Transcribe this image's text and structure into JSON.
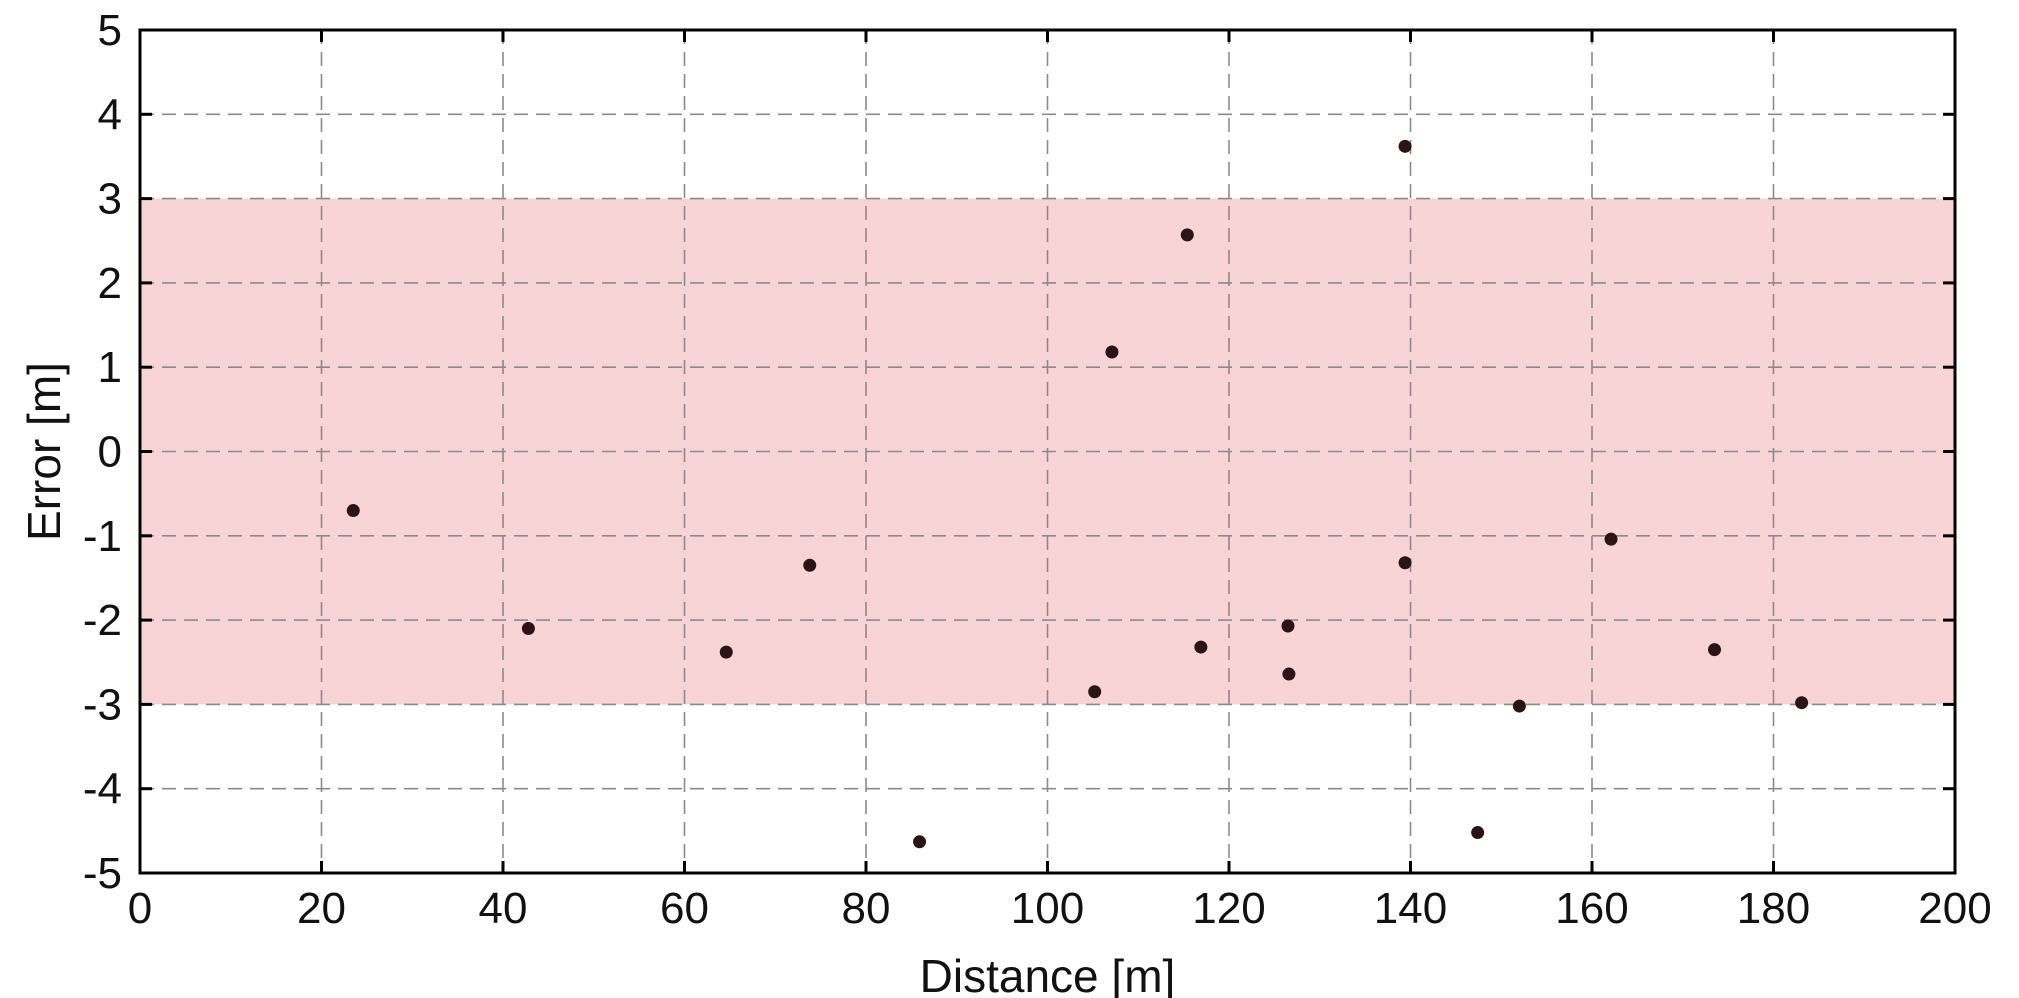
{
  "chart_data": {
    "type": "scatter",
    "xlabel": "Distance [m]",
    "ylabel": "Error [m]",
    "xlim": [
      0,
      200
    ],
    "ylim": [
      -5,
      5
    ],
    "xticks": [
      "0",
      "20",
      "40",
      "60",
      "80",
      "100",
      "120",
      "140",
      "160",
      "180",
      "200"
    ],
    "yticks": [
      "5",
      "4",
      "3",
      "2",
      "1",
      "0",
      "-1",
      "-2",
      "-3",
      "-4",
      "-5"
    ],
    "grid": true,
    "band": {
      "y_from": -3,
      "y_to": 3,
      "color": "#f9d4d6"
    },
    "marker_color": "#2a1416",
    "points": [
      {
        "x": 23.5,
        "y": -0.7
      },
      {
        "x": 42.8,
        "y": -2.1
      },
      {
        "x": 64.6,
        "y": -2.38
      },
      {
        "x": 73.8,
        "y": -1.35
      },
      {
        "x": 85.9,
        "y": -4.63
      },
      {
        "x": 105.2,
        "y": -2.85
      },
      {
        "x": 107.1,
        "y": 1.18
      },
      {
        "x": 115.4,
        "y": 2.57
      },
      {
        "x": 116.9,
        "y": -2.32
      },
      {
        "x": 126.5,
        "y": -2.07
      },
      {
        "x": 126.6,
        "y": -2.64
      },
      {
        "x": 139.4,
        "y": 3.62
      },
      {
        "x": 139.4,
        "y": -1.32
      },
      {
        "x": 147.4,
        "y": -4.52
      },
      {
        "x": 152.0,
        "y": -3.02
      },
      {
        "x": 162.1,
        "y": -1.04
      },
      {
        "x": 173.5,
        "y": -2.35
      },
      {
        "x": 183.1,
        "y": -2.98
      }
    ]
  }
}
